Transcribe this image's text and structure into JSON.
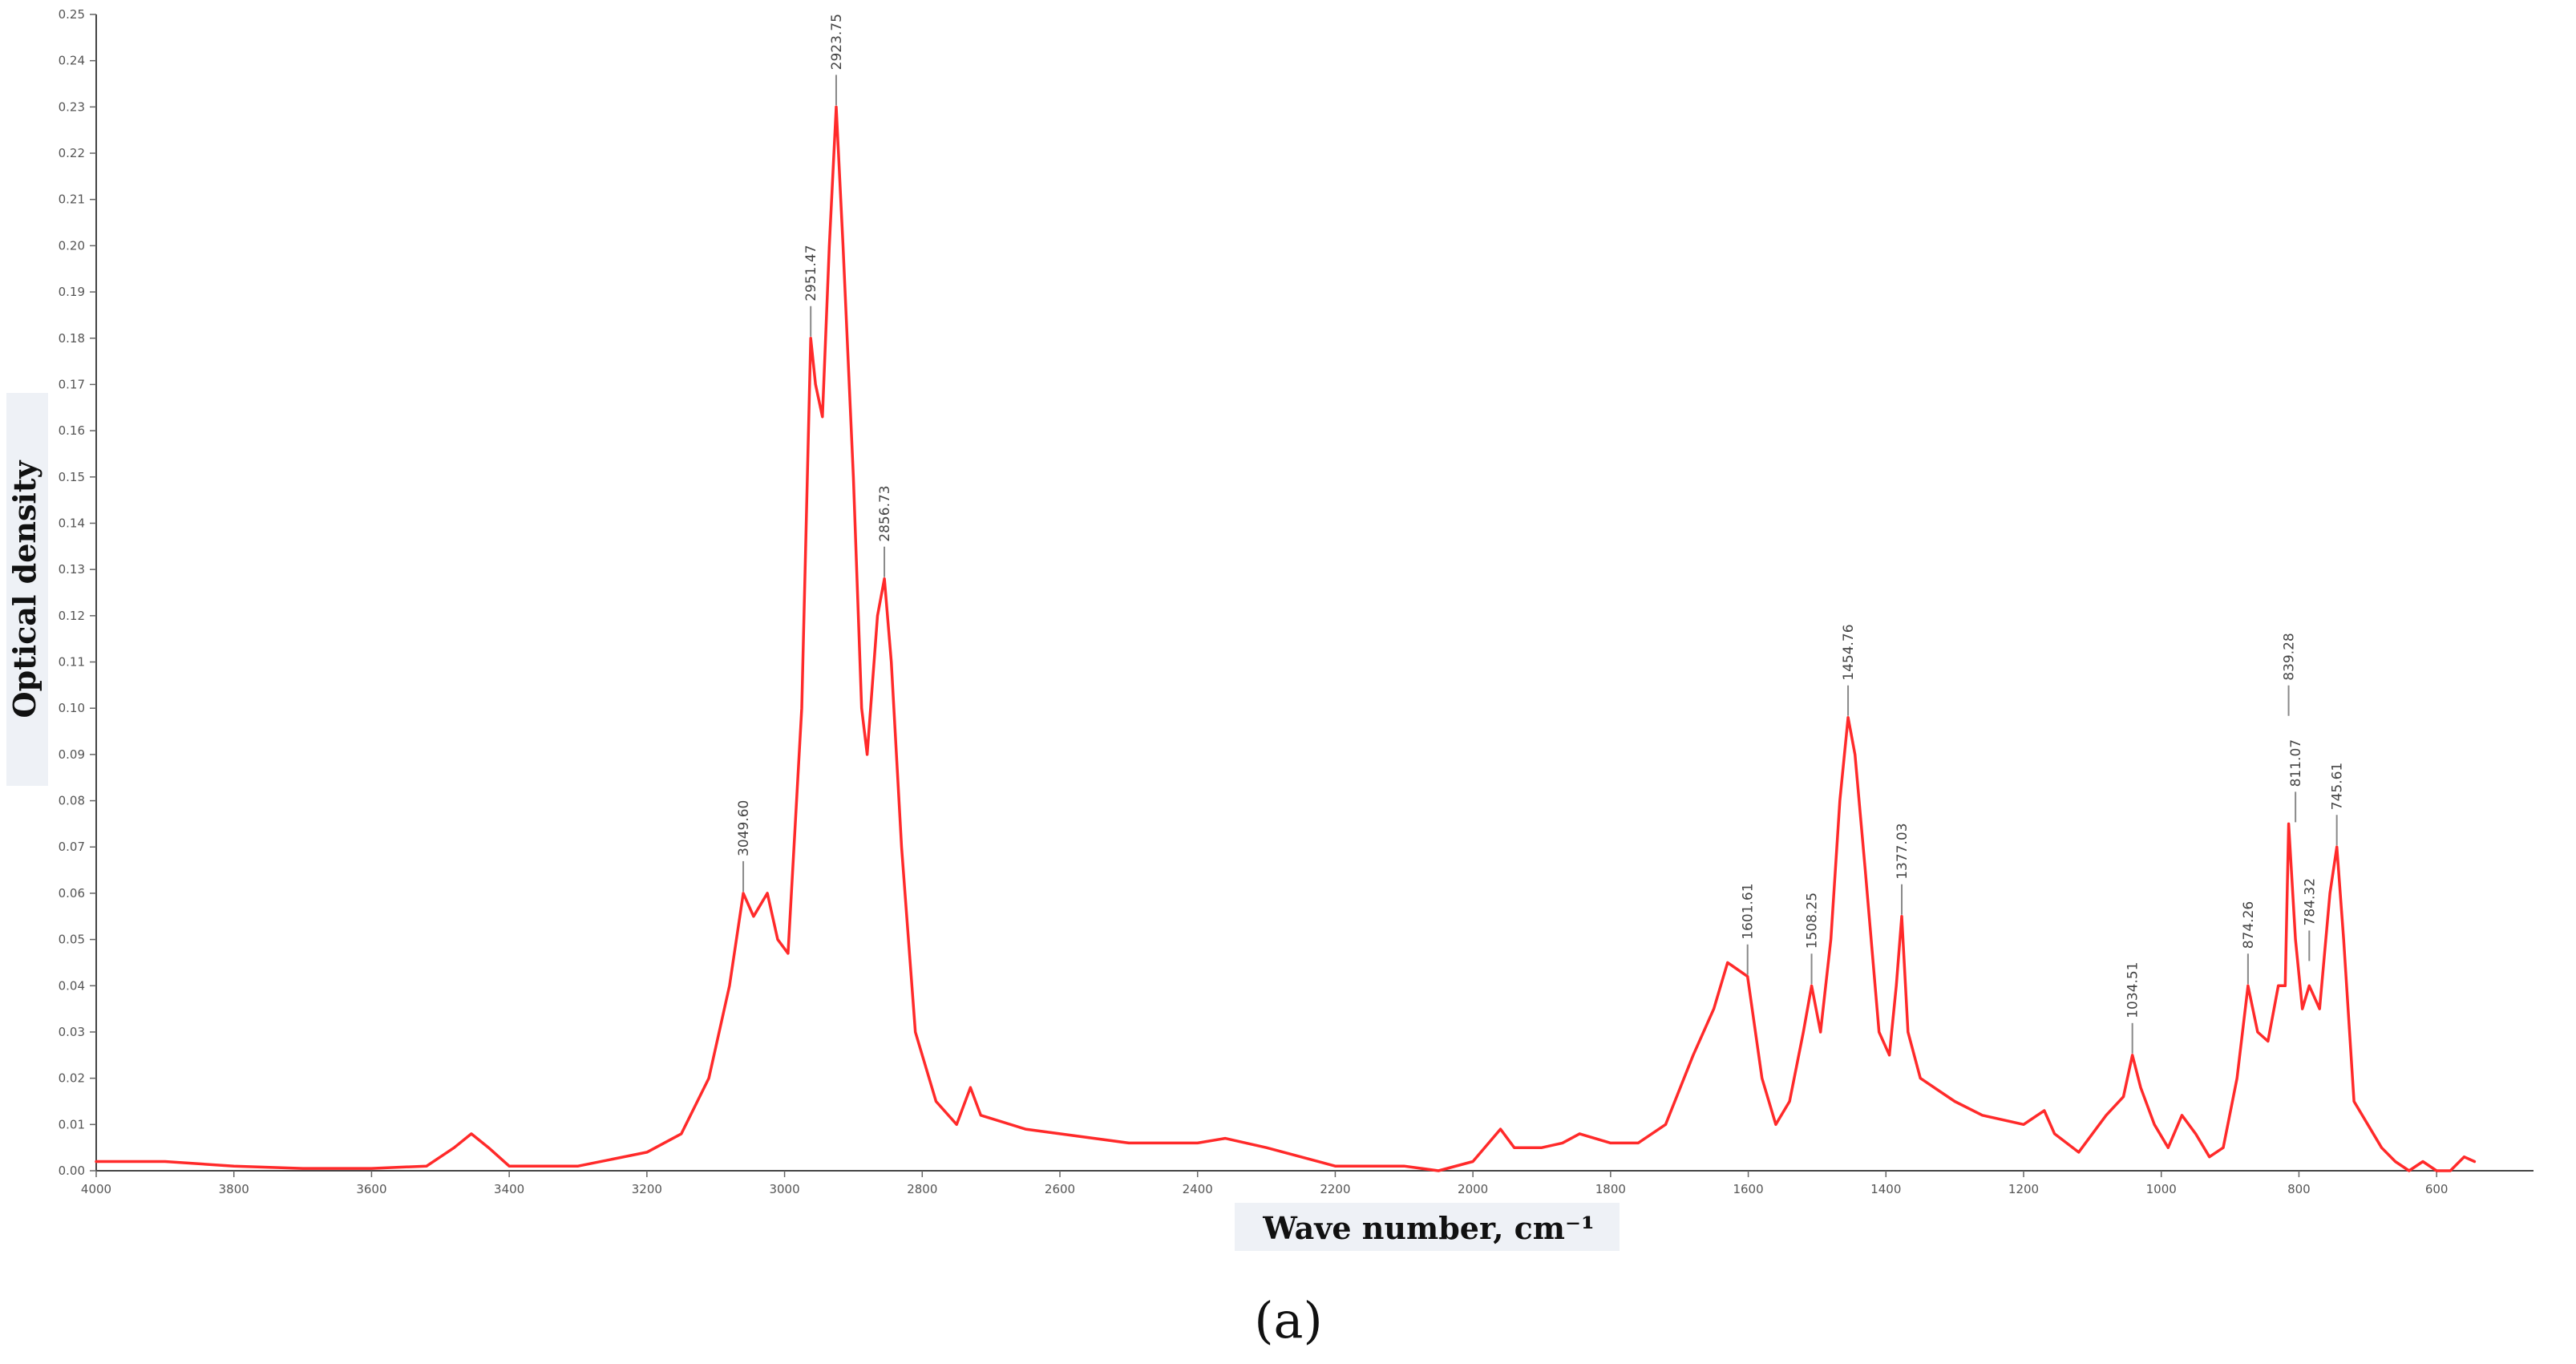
{
  "chart_data": {
    "type": "line",
    "xlabel": "Wave number, cm⁻¹",
    "ylabel": "Optical density",
    "caption": "(a)",
    "xlim": [
      4000,
      500
    ],
    "ylim": [
      0.0,
      0.25
    ],
    "x_ticks": [
      {
        "value": 4000,
        "label": "4000"
      },
      {
        "value": 3800,
        "label": "3800"
      },
      {
        "value": 3600,
        "label": "3600"
      },
      {
        "value": 3400,
        "label": "3400"
      },
      {
        "value": 3200,
        "label": "3200"
      },
      {
        "value": 3000,
        "label": "3000"
      },
      {
        "value": 2800,
        "label": "2800"
      },
      {
        "value": 2600,
        "label": "2600"
      },
      {
        "value": 2400,
        "label": "2400"
      },
      {
        "value": 2200,
        "label": "2200"
      },
      {
        "value": 2000,
        "label": "2000"
      },
      {
        "value": 1800,
        "label": "1800"
      },
      {
        "value": 1600,
        "label": "1600"
      },
      {
        "value": 1400,
        "label": "1400"
      },
      {
        "value": 1200,
        "label": "1200"
      },
      {
        "value": 1000,
        "label": "1000"
      },
      {
        "value": 800,
        "label": "800"
      },
      {
        "value": 600,
        "label": "600"
      }
    ],
    "y_ticks": [
      {
        "value": 0.0,
        "label": "0.00"
      },
      {
        "value": 0.01,
        "label": "0.01"
      },
      {
        "value": 0.02,
        "label": "0.02"
      },
      {
        "value": 0.03,
        "label": "0.03"
      },
      {
        "value": 0.04,
        "label": "0.04"
      },
      {
        "value": 0.05,
        "label": "0.05"
      },
      {
        "value": 0.06,
        "label": "0.06"
      },
      {
        "value": 0.07,
        "label": "0.07"
      },
      {
        "value": 0.08,
        "label": "0.08"
      },
      {
        "value": 0.09,
        "label": "0.09"
      },
      {
        "value": 0.1,
        "label": "0.10"
      },
      {
        "value": 0.11,
        "label": "0.11"
      },
      {
        "value": 0.12,
        "label": "0.12"
      },
      {
        "value": 0.13,
        "label": "0.13"
      },
      {
        "value": 0.14,
        "label": "0.14"
      },
      {
        "value": 0.15,
        "label": "0.15"
      },
      {
        "value": 0.16,
        "label": "0.16"
      },
      {
        "value": 0.17,
        "label": "0.17"
      },
      {
        "value": 0.18,
        "label": "0.18"
      },
      {
        "value": 0.19,
        "label": "0.19"
      },
      {
        "value": 0.2,
        "label": "0.20"
      },
      {
        "value": 0.21,
        "label": "0.21"
      },
      {
        "value": 0.22,
        "label": "0.22"
      },
      {
        "value": 0.23,
        "label": "0.23"
      },
      {
        "value": 0.24,
        "label": "0.24"
      },
      {
        "value": 0.25,
        "label": "0.25"
      }
    ],
    "grid": false,
    "series": [
      {
        "color": "#ff2a2a",
        "points": [
          [
            4000,
            0.002
          ],
          [
            3900,
            0.002
          ],
          [
            3800,
            0.001
          ],
          [
            3700,
            0.0005
          ],
          [
            3600,
            0.0005
          ],
          [
            3520,
            0.001
          ],
          [
            3480,
            0.005
          ],
          [
            3455,
            0.008
          ],
          [
            3430,
            0.005
          ],
          [
            3400,
            0.001
          ],
          [
            3300,
            0.001
          ],
          [
            3200,
            0.004
          ],
          [
            3150,
            0.008
          ],
          [
            3110,
            0.02
          ],
          [
            3080,
            0.04
          ],
          [
            3060,
            0.06
          ],
          [
            3045,
            0.055
          ],
          [
            3025,
            0.06
          ],
          [
            3010,
            0.05
          ],
          [
            2995,
            0.047
          ],
          [
            2975,
            0.1
          ],
          [
            2962,
            0.18
          ],
          [
            2955,
            0.17
          ],
          [
            2945,
            0.163
          ],
          [
            2935,
            0.2
          ],
          [
            2925,
            0.23
          ],
          [
            2915,
            0.2
          ],
          [
            2900,
            0.15
          ],
          [
            2888,
            0.1
          ],
          [
            2880,
            0.09
          ],
          [
            2865,
            0.12
          ],
          [
            2855,
            0.128
          ],
          [
            2845,
            0.11
          ],
          [
            2830,
            0.07
          ],
          [
            2810,
            0.03
          ],
          [
            2780,
            0.015
          ],
          [
            2750,
            0.01
          ],
          [
            2730,
            0.018
          ],
          [
            2715,
            0.012
          ],
          [
            2650,
            0.009
          ],
          [
            2600,
            0.008
          ],
          [
            2500,
            0.006
          ],
          [
            2400,
            0.006
          ],
          [
            2360,
            0.007
          ],
          [
            2300,
            0.005
          ],
          [
            2200,
            0.001
          ],
          [
            2100,
            0.001
          ],
          [
            2050,
            0.0
          ],
          [
            2000,
            0.002
          ],
          [
            1960,
            0.009
          ],
          [
            1940,
            0.005
          ],
          [
            1900,
            0.005
          ],
          [
            1870,
            0.006
          ],
          [
            1845,
            0.008
          ],
          [
            1800,
            0.006
          ],
          [
            1760,
            0.006
          ],
          [
            1720,
            0.01
          ],
          [
            1680,
            0.025
          ],
          [
            1650,
            0.035
          ],
          [
            1630,
            0.045
          ],
          [
            1601,
            0.042
          ],
          [
            1580,
            0.02
          ],
          [
            1560,
            0.01
          ],
          [
            1540,
            0.015
          ],
          [
            1520,
            0.03
          ],
          [
            1508,
            0.04
          ],
          [
            1495,
            0.03
          ],
          [
            1480,
            0.05
          ],
          [
            1467,
            0.08
          ],
          [
            1455,
            0.098
          ],
          [
            1445,
            0.09
          ],
          [
            1430,
            0.065
          ],
          [
            1410,
            0.03
          ],
          [
            1395,
            0.025
          ],
          [
            1385,
            0.04
          ],
          [
            1377,
            0.055
          ],
          [
            1368,
            0.03
          ],
          [
            1350,
            0.02
          ],
          [
            1300,
            0.015
          ],
          [
            1260,
            0.012
          ],
          [
            1200,
            0.01
          ],
          [
            1170,
            0.013
          ],
          [
            1155,
            0.008
          ],
          [
            1120,
            0.004
          ],
          [
            1080,
            0.012
          ],
          [
            1055,
            0.016
          ],
          [
            1042,
            0.025
          ],
          [
            1030,
            0.018
          ],
          [
            1010,
            0.01
          ],
          [
            990,
            0.005
          ],
          [
            970,
            0.012
          ],
          [
            950,
            0.008
          ],
          [
            930,
            0.003
          ],
          [
            910,
            0.005
          ],
          [
            890,
            0.02
          ],
          [
            874,
            0.04
          ],
          [
            860,
            0.03
          ],
          [
            845,
            0.028
          ],
          [
            830,
            0.04
          ],
          [
            820,
            0.04
          ],
          [
            815,
            0.075
          ],
          [
            805,
            0.05
          ],
          [
            795,
            0.035
          ],
          [
            785,
            0.04
          ],
          [
            770,
            0.035
          ],
          [
            755,
            0.06
          ],
          [
            745,
            0.07
          ],
          [
            735,
            0.05
          ],
          [
            720,
            0.015
          ],
          [
            700,
            0.01
          ],
          [
            680,
            0.005
          ],
          [
            660,
            0.002
          ],
          [
            640,
            0.0
          ],
          [
            620,
            0.002
          ],
          [
            600,
            0.0
          ],
          [
            580,
            0.0
          ],
          [
            560,
            0.003
          ],
          [
            545,
            0.002
          ]
        ]
      }
    ],
    "annotations": [
      {
        "x": 3060,
        "y": 0.06,
        "label": "3049.60"
      },
      {
        "x": 2962,
        "y": 0.18,
        "label": "2951.47"
      },
      {
        "x": 2925,
        "y": 0.23,
        "label": "2923.75"
      },
      {
        "x": 2855,
        "y": 0.128,
        "label": "2856.73"
      },
      {
        "x": 1601,
        "y": 0.042,
        "label": "1601.61"
      },
      {
        "x": 1508,
        "y": 0.04,
        "label": "1508.25"
      },
      {
        "x": 1455,
        "y": 0.098,
        "label": "1454.76"
      },
      {
        "x": 1377,
        "y": 0.055,
        "label": "1377.03"
      },
      {
        "x": 1042,
        "y": 0.025,
        "label": "1034.51"
      },
      {
        "x": 874,
        "y": 0.04,
        "label": "874.26"
      },
      {
        "x": 815,
        "y": 0.098,
        "label": "839.28"
      },
      {
        "x": 805,
        "y": 0.075,
        "label": "811.07"
      },
      {
        "x": 785,
        "y": 0.045,
        "label": "784.32"
      },
      {
        "x": 745,
        "y": 0.07,
        "label": "745.61"
      }
    ]
  }
}
